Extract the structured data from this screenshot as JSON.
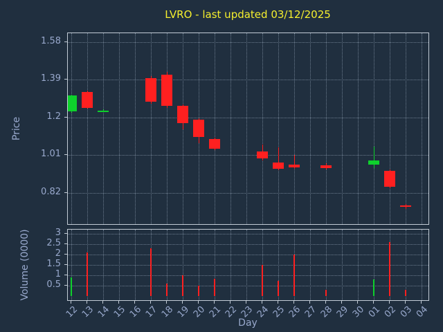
{
  "colors": {
    "background": "#202f3f",
    "title": "#f5ef2e",
    "axis_text": "#98a8cc",
    "grid": "#6b7b8d",
    "spine": "#c3ccd6",
    "up": "#0ed12c",
    "down": "#ff2020"
  },
  "chart_data": {
    "type": "candlestick",
    "title": "LVRO - last updated 03/12/2025",
    "xlabel": "Day",
    "ylabel_price": "Price",
    "ylabel_volume": "Volume (0000)",
    "x_labels": [
      "12",
      "13",
      "14",
      "15",
      "16",
      "17",
      "18",
      "19",
      "20",
      "21",
      "22",
      "23",
      "24",
      "25",
      "26",
      "27",
      "28",
      "29",
      "30",
      "01",
      "02",
      "03",
      "04"
    ],
    "price_ticks": [
      1.58,
      1.39,
      1.2,
      1.01,
      0.82
    ],
    "price_ylim": [
      0.656,
      1.625
    ],
    "volume_ticks": [
      3,
      2.5,
      2,
      1.5,
      1,
      0.5
    ],
    "volume_ylim": [
      0,
      3.2
    ],
    "grid": true,
    "candles": [
      {
        "day": "12",
        "open": 1.23,
        "high": 1.315,
        "low": 1.225,
        "close": 1.31,
        "volume": 0.9,
        "dir": "up"
      },
      {
        "day": "13",
        "open": 1.33,
        "high": 1.335,
        "low": 1.245,
        "close": 1.25,
        "volume": 2.1,
        "dir": "down"
      },
      {
        "day": "14",
        "open": 1.235,
        "high": 1.24,
        "low": 1.23,
        "close": 1.235,
        "volume": 0,
        "dir": "up"
      },
      {
        "day": "17",
        "open": 1.4,
        "high": 1.41,
        "low": 1.27,
        "close": 1.28,
        "volume": 2.3,
        "dir": "down"
      },
      {
        "day": "18",
        "open": 1.415,
        "high": 1.43,
        "low": 1.25,
        "close": 1.26,
        "volume": 0.6,
        "dir": "down"
      },
      {
        "day": "19",
        "open": 1.26,
        "high": 1.265,
        "low": 1.14,
        "close": 1.172,
        "volume": 1.0,
        "dir": "down"
      },
      {
        "day": "20",
        "open": 1.19,
        "high": 1.195,
        "low": 1.07,
        "close": 1.102,
        "volume": 0.5,
        "dir": "down"
      },
      {
        "day": "21",
        "open": 1.092,
        "high": 1.1,
        "low": 1.035,
        "close": 1.042,
        "volume": 0.85,
        "dir": "down"
      },
      {
        "day": "24",
        "open": 1.03,
        "high": 1.065,
        "low": 0.985,
        "close": 0.995,
        "volume": 1.5,
        "dir": "down"
      },
      {
        "day": "25",
        "open": 0.972,
        "high": 1.05,
        "low": 0.935,
        "close": 0.942,
        "volume": 0.75,
        "dir": "down"
      },
      {
        "day": "26",
        "open": 0.962,
        "high": 1.012,
        "low": 0.942,
        "close": 0.95,
        "volume": 2.0,
        "dir": "down"
      },
      {
        "day": "28",
        "open": 0.96,
        "high": 0.968,
        "low": 0.94,
        "close": 0.946,
        "volume": 0.3,
        "dir": "down"
      },
      {
        "day": "01",
        "open": 0.962,
        "high": 1.052,
        "low": 0.945,
        "close": 0.985,
        "volume": 0.8,
        "dir": "up"
      },
      {
        "day": "02",
        "open": 0.93,
        "high": 0.938,
        "low": 0.845,
        "close": 0.852,
        "volume": 2.6,
        "dir": "down"
      },
      {
        "day": "03",
        "open": 0.758,
        "high": 0.765,
        "low": 0.738,
        "close": 0.75,
        "volume": 0.3,
        "dir": "down"
      }
    ]
  }
}
